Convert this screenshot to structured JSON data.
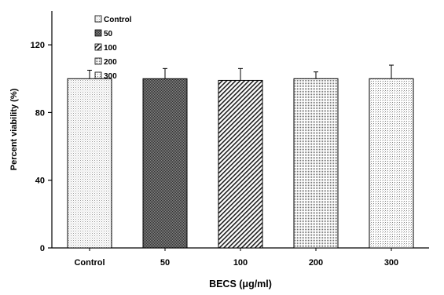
{
  "chart_data": {
    "type": "bar",
    "categories": [
      "Control",
      "50",
      "100",
      "200",
      "300"
    ],
    "values": [
      100,
      100,
      99,
      100,
      100
    ],
    "errors": [
      5,
      6,
      7,
      4,
      8
    ],
    "xlabel": "BECS (μg/ml)",
    "ylabel": "Percent viability (%)",
    "ylim": [
      0,
      140
    ],
    "yticks": [
      0,
      40,
      80,
      120
    ],
    "legend": {
      "position": "top-left",
      "entries": [
        "Control",
        "50",
        "100",
        "200",
        "300"
      ]
    },
    "grid": false
  }
}
